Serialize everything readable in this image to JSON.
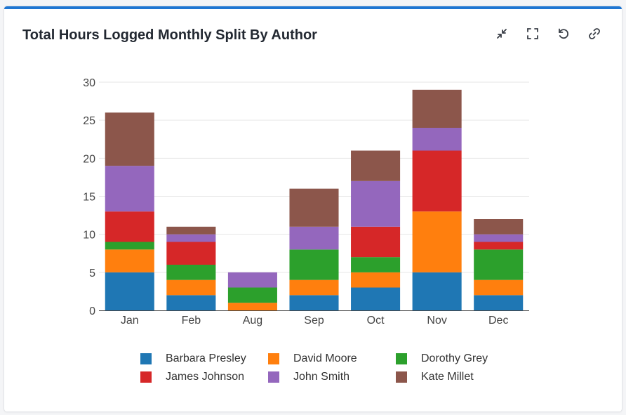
{
  "card": {
    "title": "Total Hours Logged Monthly Split By Author",
    "accent": "#1f76d2"
  },
  "toolbar": [
    {
      "name": "collapse-icon"
    },
    {
      "name": "fullscreen-icon"
    },
    {
      "name": "refresh-icon"
    },
    {
      "name": "link-icon"
    }
  ],
  "chart_data": {
    "type": "bar",
    "stacked": true,
    "categories": [
      "Jan",
      "Feb",
      "Aug",
      "Sep",
      "Oct",
      "Nov",
      "Dec"
    ],
    "ylim": [
      0,
      30
    ],
    "yticks": [
      0,
      5,
      10,
      15,
      20,
      25,
      30
    ],
    "grid": true,
    "legend_position": "bottom",
    "series": [
      {
        "name": "Barbara Presley",
        "color": "#1f77b4",
        "values": [
          5,
          2,
          0,
          2,
          3,
          5,
          2
        ]
      },
      {
        "name": "David Moore",
        "color": "#ff7f0e",
        "values": [
          3,
          2,
          1,
          2,
          2,
          8,
          2
        ]
      },
      {
        "name": "Dorothy Grey",
        "color": "#2ca02c",
        "values": [
          1,
          2,
          2,
          4,
          2,
          0,
          4
        ]
      },
      {
        "name": "James Johnson",
        "color": "#d62728",
        "values": [
          4,
          3,
          0,
          0,
          4,
          8,
          1
        ]
      },
      {
        "name": "John Smith",
        "color": "#9467bd",
        "values": [
          6,
          1,
          2,
          3,
          6,
          3,
          1
        ]
      },
      {
        "name": "Kate Millet",
        "color": "#8c564b",
        "values": [
          7,
          1,
          0,
          5,
          4,
          5,
          2
        ]
      }
    ]
  }
}
